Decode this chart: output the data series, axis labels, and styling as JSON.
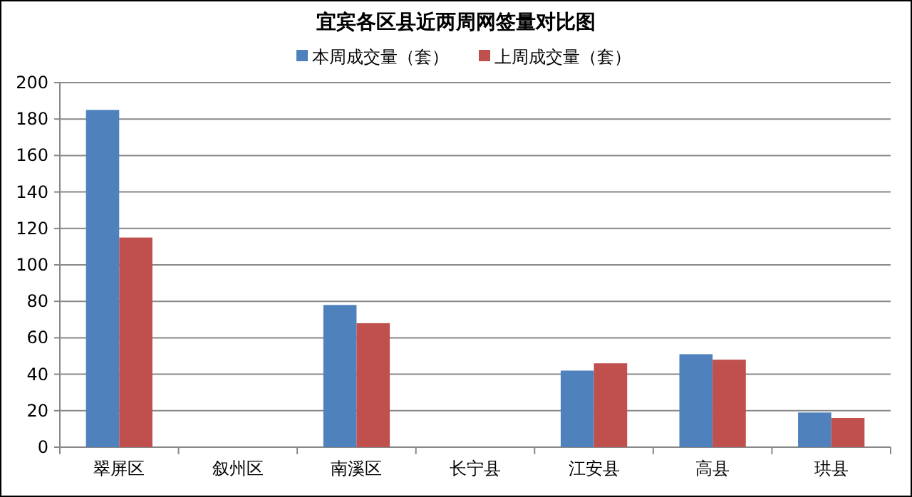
{
  "chart_data": {
    "type": "bar",
    "title": "宜宾各区县近两周网签量对比图",
    "categories": [
      "翠屏区",
      "叙州区",
      "南溪区",
      "长宁县",
      "江安县",
      "高县",
      "珙县"
    ],
    "series": [
      {
        "name": "本周成交量（套）",
        "color": "#4f81bd",
        "values": [
          185,
          0,
          78,
          0,
          42,
          51,
          19
        ]
      },
      {
        "name": "上周成交量（套）",
        "color": "#c0504d",
        "values": [
          115,
          0,
          68,
          0,
          46,
          48,
          16
        ]
      }
    ],
    "ylim": [
      0,
      200
    ],
    "yticks": [
      0,
      20,
      40,
      60,
      80,
      100,
      120,
      140,
      160,
      180,
      200
    ],
    "grid": "y",
    "legend": "top"
  }
}
